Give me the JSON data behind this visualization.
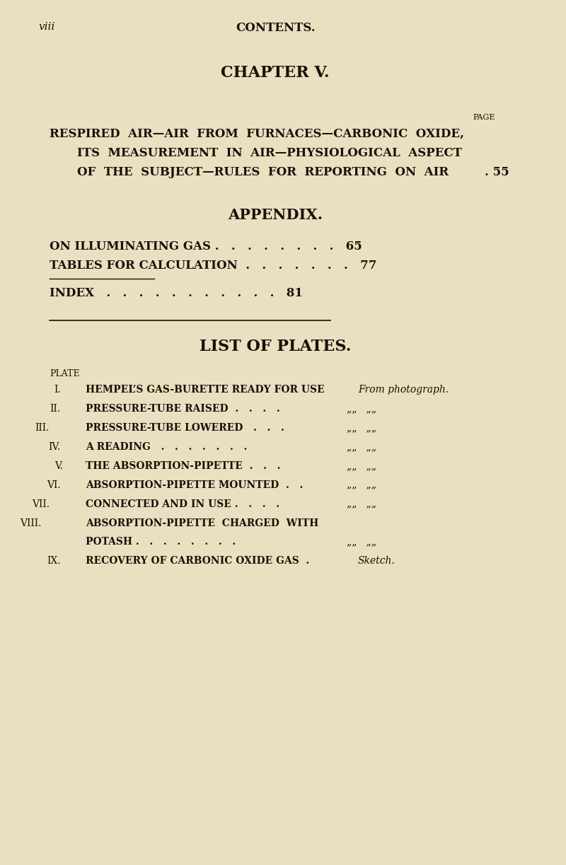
{
  "bg_color": "#e8e0c0",
  "text_color": "#1a1008",
  "page_label": "viii",
  "page_header": "CONTENTS.",
  "chapter_title": "CHAPTER V.",
  "page_label_small": "PAGE",
  "chapter_entry_line1": "RESPIRED  AIR—AIR  FROM  FURNACES—CARBONIC  OXIDE,",
  "chapter_entry_line2": "ITS  MEASUREMENT  IN  AIR—PHYSIOLOGICAL  ASPECT",
  "chapter_entry_line3": "OF  THE  SUBJECT—RULES  FOR  REPORTING  ON  AIR",
  "chapter_page": "55",
  "appendix_title": "APPENDIX.",
  "appendix_entries": [
    {
      "text": "ON ILLUMINATING GAS .",
      "dots": "       ",
      "page": "65"
    },
    {
      "text": "TABLES FOR CALCULATION",
      "dots": "       ",
      "page": "77"
    }
  ],
  "index_label": "INDEX",
  "index_page": "81",
  "list_title": "LIST OF PLATES.",
  "plate_label": "PLATE",
  "plates": [
    {
      "num": "I.",
      "desc": "HEMPEL’S GAS-BURETTE READY FOR USE",
      "source": "From photograph."
    },
    {
      "num": "II.",
      "desc": "PRESSURE-TUBE RAISED  .   .   .   .",
      "source": "„   „"
    },
    {
      "num": "III.",
      "desc": "PRESSURE-TUBE LOWERED   .   .   .",
      "source": "„   „"
    },
    {
      "num": "IV.",
      "desc": "A READING   .   .   .   .   .   .",
      "source": "„   „"
    },
    {
      "num": "V.",
      "desc": "THE ABSORPTION-PIPETTE  .   .   .",
      "source": "„   „"
    },
    {
      "num": "VI.",
      "desc": "ABSORPTION-PIPETTE MOUNTED  .   .",
      "source": "„   „"
    },
    {
      "num": "VII.",
      "desc": "CONNECTED AND IN USE .   .   .   .",
      "source": "„   „"
    },
    {
      "num": "VIII.",
      "desc": "ABSORPTION-PIPETTE  CHARGED  WITH",
      "source": ""
    },
    {
      "num": "",
      "desc": "POTASH .   .   .   .   .   .   .",
      "source": "„   „"
    },
    {
      "num": "IX.",
      "desc": "RECOVERY OF CARBONIC OXIDE GAS  .",
      "source": "Sketch."
    }
  ]
}
